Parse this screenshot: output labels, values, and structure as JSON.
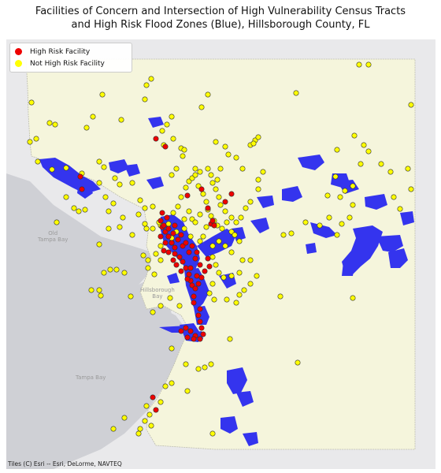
{
  "title": {
    "line1": "Facilities of Concern and Intersection of High Vulnerability Census Tracts",
    "line2": "and High Risk Flood Zones (Blue), Hillsborough County, FL"
  },
  "legend": {
    "items": [
      {
        "label": "High Risk Facility",
        "color": "#ee0000"
      },
      {
        "label": "Not High Risk Facility",
        "color": "#ffff00"
      }
    ]
  },
  "basemap": {
    "attribution": "Tiles (C) Esri -- Esri, DeLorme, NAVTEQ",
    "labels": {
      "old_tampa_bay": "Old\nTampa Bay",
      "hillsborough_bay": "Hillsborough\nBay",
      "tampa_bay": "Tampa Bay"
    }
  },
  "colors": {
    "county_fill": "#f5f5dc",
    "flood_zone": "#3333ee",
    "water": "#cfd0d5",
    "land": "#e8e8ea"
  }
}
